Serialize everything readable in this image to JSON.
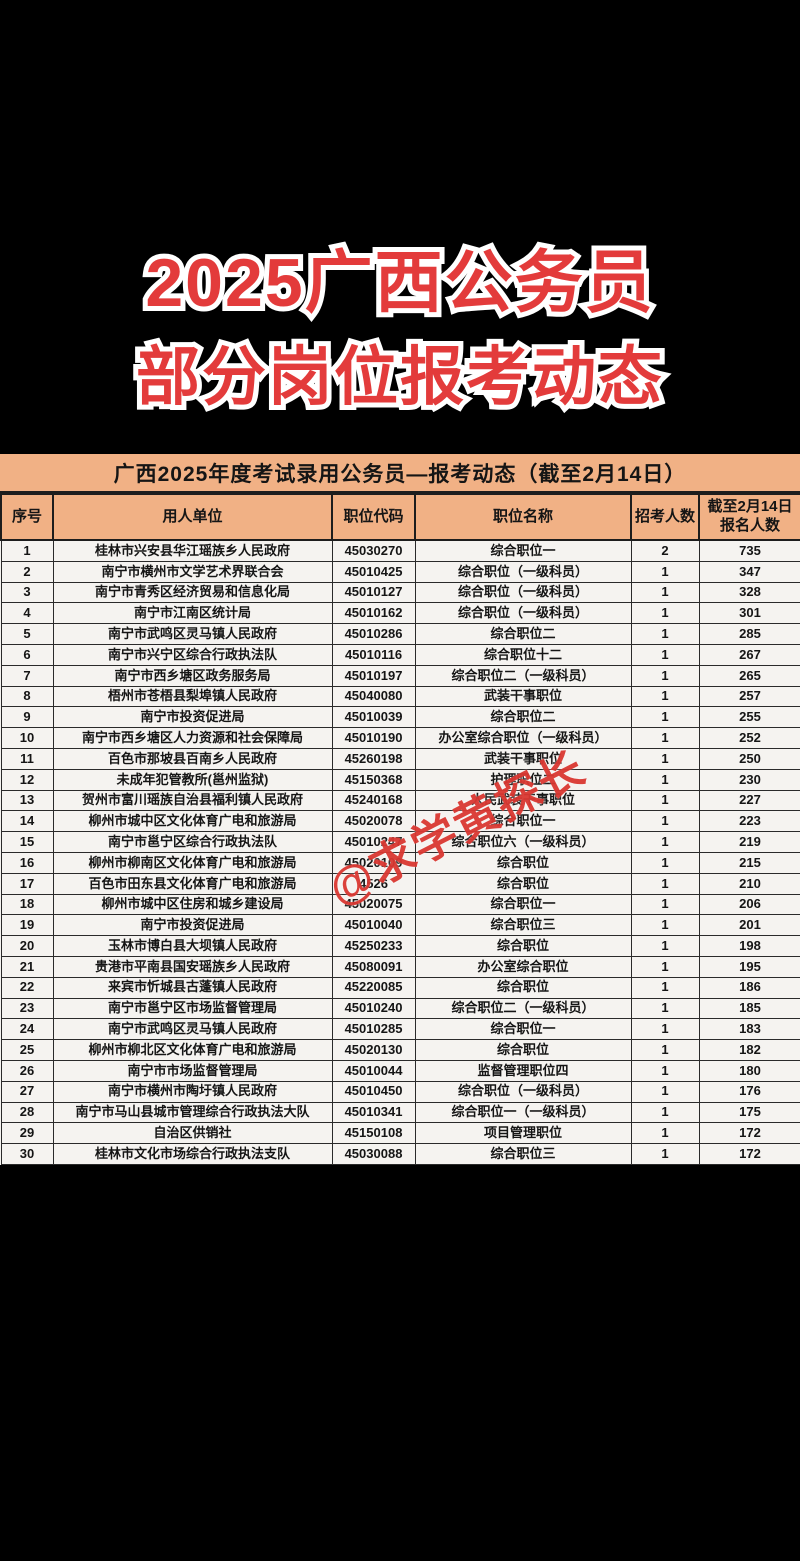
{
  "hero": {
    "line1": "2025广西公务员",
    "line2": "部分岗位报考动态"
  },
  "table": {
    "title": "广西2025年度考试录用公务员—报考动态（截至2月14日）",
    "columns": [
      "序号",
      "用人单位",
      "职位代码",
      "职位名称",
      "招考人数",
      "截至2月14日\n报名人数"
    ],
    "rows": [
      [
        "1",
        "桂林市兴安县华江瑶族乡人民政府",
        "45030270",
        "综合职位一",
        "2",
        "735"
      ],
      [
        "2",
        "南宁市横州市文学艺术界联合会",
        "45010425",
        "综合职位（一级科员）",
        "1",
        "347"
      ],
      [
        "3",
        "南宁市青秀区经济贸易和信息化局",
        "45010127",
        "综合职位（一级科员）",
        "1",
        "328"
      ],
      [
        "4",
        "南宁市江南区统计局",
        "45010162",
        "综合职位（一级科员）",
        "1",
        "301"
      ],
      [
        "5",
        "南宁市武鸣区灵马镇人民政府",
        "45010286",
        "综合职位二",
        "1",
        "285"
      ],
      [
        "6",
        "南宁市兴宁区综合行政执法队",
        "45010116",
        "综合职位十二",
        "1",
        "267"
      ],
      [
        "7",
        "南宁市西乡塘区政务服务局",
        "45010197",
        "综合职位二（一级科员）",
        "1",
        "265"
      ],
      [
        "8",
        "梧州市苍梧县梨埠镇人民政府",
        "45040080",
        "武装干事职位",
        "1",
        "257"
      ],
      [
        "9",
        "南宁市投资促进局",
        "45010039",
        "综合职位二",
        "1",
        "255"
      ],
      [
        "10",
        "南宁市西乡塘区人力资源和社会保障局",
        "45010190",
        "办公室综合职位（一级科员）",
        "1",
        "252"
      ],
      [
        "11",
        "百色市那坡县百南乡人民政府",
        "45260198",
        "武装干事职位",
        "1",
        "250"
      ],
      [
        "12",
        "未成年犯管教所(邕州监狱)",
        "45150368",
        "护理职位二",
        "1",
        "230"
      ],
      [
        "13",
        "贺州市富川瑶族自治县福利镇人民政府",
        "45240168",
        "人民武装干事职位",
        "1",
        "227"
      ],
      [
        "14",
        "柳州市城中区文化体育广电和旅游局",
        "45020078",
        "综合职位一",
        "1",
        "223"
      ],
      [
        "15",
        "南宁市邕宁区综合行政执法队",
        "45010247",
        "综合职位六（一级科员）",
        "1",
        "219"
      ],
      [
        "16",
        "柳州市柳南区文化体育广电和旅游局",
        "45020109",
        "综合职位",
        "1",
        "215"
      ],
      [
        "17",
        "百色市田东县文化体育广电和旅游局",
        "4526",
        "综合职位",
        "1",
        "210"
      ],
      [
        "18",
        "柳州市城中区住房和城乡建设局",
        "45020075",
        "综合职位一",
        "1",
        "206"
      ],
      [
        "19",
        "南宁市投资促进局",
        "45010040",
        "综合职位三",
        "1",
        "201"
      ],
      [
        "20",
        "玉林市博白县大坝镇人民政府",
        "45250233",
        "综合职位",
        "1",
        "198"
      ],
      [
        "21",
        "贵港市平南县国安瑶族乡人民政府",
        "45080091",
        "办公室综合职位",
        "1",
        "195"
      ],
      [
        "22",
        "来宾市忻城县古蓬镇人民政府",
        "45220085",
        "综合职位",
        "1",
        "186"
      ],
      [
        "23",
        "南宁市邕宁区市场监督管理局",
        "45010240",
        "综合职位二（一级科员）",
        "1",
        "185"
      ],
      [
        "24",
        "南宁市武鸣区灵马镇人民政府",
        "45010285",
        "综合职位一",
        "1",
        "183"
      ],
      [
        "25",
        "柳州市柳北区文化体育广电和旅游局",
        "45020130",
        "综合职位",
        "1",
        "182"
      ],
      [
        "26",
        "南宁市市场监督管理局",
        "45010044",
        "监督管理职位四",
        "1",
        "180"
      ],
      [
        "27",
        "南宁市横州市陶圩镇人民政府",
        "45010450",
        "综合职位（一级科员）",
        "1",
        "176"
      ],
      [
        "28",
        "南宁市马山县城市管理综合行政执法大队",
        "45010341",
        "综合职位一（一级科员）",
        "1",
        "175"
      ],
      [
        "29",
        "自治区供销社",
        "45150108",
        "项目管理职位",
        "1",
        "172"
      ],
      [
        "30",
        "桂林市文化市场综合行政执法支队",
        "45030088",
        "综合职位三",
        "1",
        "172"
      ]
    ]
  },
  "watermark": {
    "text": "@求学黄探长"
  },
  "colors": {
    "page_bg": "#000000",
    "title_red": "#e33b3b",
    "title_outline": "#ffffff",
    "header_orange": "#f1b185",
    "table_bg": "#f5f3f0",
    "border_dark": "#2a2a2a",
    "watermark_red": "#da3832"
  }
}
